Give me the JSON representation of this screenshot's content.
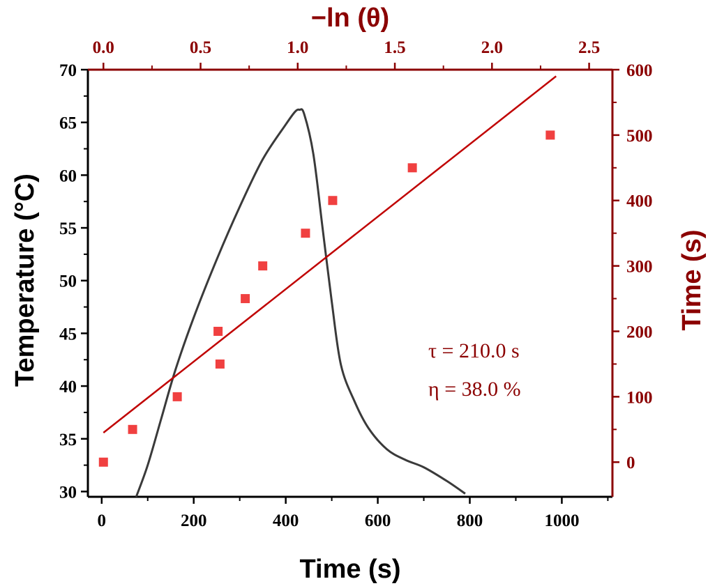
{
  "chart_data": {
    "type": "line+scatter",
    "colors": {
      "axis_left_bottom": "#000000",
      "axis_right_top": "#8B0000",
      "temperature_line": "#3a3a3a",
      "scatter": "#f04040",
      "fit_line": "#c00000"
    },
    "x_bottom": {
      "label": "Time (s)",
      "range": [
        -30,
        1110
      ],
      "ticks": [
        0,
        200,
        400,
        600,
        800,
        1000
      ]
    },
    "y_left": {
      "label": "Temperature (°C)",
      "range": [
        29.5,
        70
      ],
      "ticks": [
        30,
        35,
        40,
        45,
        50,
        55,
        60,
        65,
        70
      ]
    },
    "x_top": {
      "label": "−ln (θ)",
      "range": [
        -0.08,
        2.62
      ],
      "ticks": [
        "0.0",
        "0.5",
        "1.0",
        "1.5",
        "2.0",
        "2.5"
      ]
    },
    "y_right": {
      "label": "Time (s)",
      "range": [
        -53,
        600
      ],
      "ticks": [
        0,
        100,
        200,
        300,
        400,
        500,
        600
      ]
    },
    "series": [
      {
        "type": "line",
        "axes": "bottom-left",
        "x": [
          75,
          100,
          130,
          160,
          200,
          250,
          300,
          350,
          400,
          420,
          430,
          440,
          460,
          480,
          500,
          520,
          550,
          580,
          620,
          660,
          700,
          750,
          790
        ],
        "y": [
          29.5,
          32.5,
          37,
          41.5,
          46.5,
          52,
          57,
          61.5,
          64.8,
          66,
          66.2,
          65.8,
          62,
          55,
          48,
          42,
          38.5,
          36,
          34,
          33,
          32.3,
          31,
          29.8
        ]
      },
      {
        "type": "scatter",
        "axes": "top-right",
        "x": [
          0.0,
          0.15,
          0.38,
          0.6,
          0.59,
          0.73,
          0.82,
          1.04,
          1.18,
          1.59,
          2.3
        ],
        "y": [
          0,
          50,
          100,
          150,
          200,
          250,
          300,
          350,
          400,
          450,
          500
        ]
      },
      {
        "type": "line",
        "axes": "top-right",
        "x": [
          0.0,
          2.33
        ],
        "y": [
          45,
          590
        ]
      }
    ],
    "annotations": [
      "τ = 210.0 s",
      "η = 38.0 %"
    ]
  }
}
